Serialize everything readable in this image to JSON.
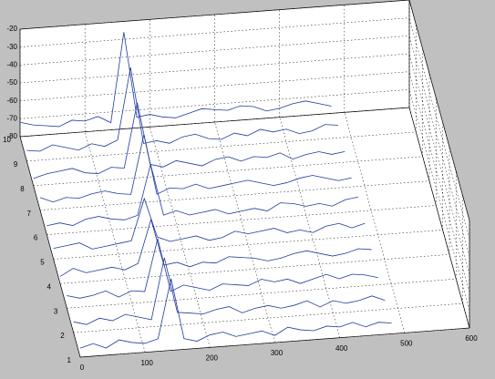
{
  "chart_data": {
    "type": "waterfall3d",
    "x": [
      0,
      20,
      40,
      60,
      80,
      100,
      120,
      140,
      160,
      180,
      200,
      220,
      240,
      260,
      280,
      300,
      320,
      340,
      360,
      380,
      400,
      420,
      440,
      460,
      480
    ],
    "series": [
      {
        "y": 1,
        "color": "#1f3a9e",
        "values": [
          -75,
          -73,
          -76,
          -72,
          -74,
          -75,
          -73,
          -40,
          -74,
          -76,
          -73,
          -72,
          -75,
          -74,
          -73,
          -76,
          -72,
          -74,
          -75,
          -73,
          -74,
          -72,
          -75,
          -73,
          -74
        ]
      },
      {
        "y": 2,
        "color": "#1f3a9e",
        "values": [
          -74,
          -76,
          -73,
          -75,
          -72,
          -74,
          -76,
          -42,
          -73,
          -74,
          -75,
          -73,
          -72,
          -76,
          -74,
          -73,
          -75,
          -74,
          -72,
          -76,
          -73,
          -75,
          -74,
          -72,
          -75
        ]
      },
      {
        "y": 3,
        "color": "#1f3a9e",
        "values": [
          -73,
          -75,
          -74,
          -72,
          -76,
          -73,
          -74,
          -45,
          -75,
          -72,
          -74,
          -76,
          -73,
          -74,
          -75,
          -72,
          -74,
          -73,
          -76,
          -74,
          -72,
          -75,
          -73,
          -74,
          -76
        ]
      },
      {
        "y": 4,
        "color": "#1f3a9e",
        "values": [
          -76,
          -72,
          -75,
          -74,
          -73,
          -75,
          -72,
          -48,
          -74,
          -73,
          -76,
          -74,
          -75,
          -72,
          -73,
          -74,
          -76,
          -75,
          -73,
          -72,
          -74,
          -76,
          -75,
          -73,
          -74
        ]
      },
      {
        "y": 5,
        "color": "#1f3a9e",
        "values": [
          -74,
          -73,
          -72,
          -76,
          -75,
          -74,
          -73,
          -50,
          -72,
          -75,
          -74,
          -73,
          -76,
          -75,
          -72,
          -74,
          -73,
          -72,
          -75,
          -74,
          -76,
          -73,
          -72,
          -75,
          -73
        ]
      },
      {
        "y": 6,
        "color": "#1f3a9e",
        "values": [
          -75,
          -74,
          -76,
          -73,
          -72,
          -74,
          -75,
          -73,
          -45,
          -74,
          -72,
          -75,
          -74,
          -73,
          -76,
          -75,
          -74,
          -76,
          -72,
          -73,
          -75,
          -74,
          -76,
          -73,
          -72
        ]
      },
      {
        "y": 7,
        "color": "#1f3a9e",
        "values": [
          -73,
          -76,
          -74,
          -75,
          -73,
          -72,
          -74,
          -75,
          -42,
          -76,
          -73,
          -74,
          -72,
          -75,
          -74,
          -73,
          -72,
          -74,
          -76,
          -75,
          -73,
          -72,
          -74,
          -76,
          -75
        ]
      },
      {
        "y": 8,
        "color": "#1f3a9e",
        "values": [
          -76,
          -74,
          -73,
          -72,
          -75,
          -76,
          -73,
          -74,
          -38,
          -73,
          -75,
          -72,
          -74,
          -76,
          -73,
          -72,
          -75,
          -73,
          -74,
          -72,
          -76,
          -74,
          -73,
          -75,
          -74
        ]
      },
      {
        "y": 9,
        "color": "#1f3a9e",
        "values": [
          -74,
          -75,
          -72,
          -74,
          -76,
          -73,
          -75,
          -72,
          -32,
          -75,
          -74,
          -76,
          -73,
          -72,
          -75,
          -76,
          -73,
          -75,
          -72,
          -74,
          -73,
          -76,
          -75,
          -72,
          -73
        ]
      },
      {
        "y": 10,
        "color": "#1f3a9e",
        "values": [
          -72,
          -74,
          -75,
          -76,
          -73,
          -74,
          -72,
          -76,
          -26,
          -74,
          -73,
          -75,
          -76,
          -74,
          -72,
          -73,
          -74,
          -72,
          -73,
          -76,
          -75,
          -73,
          -72,
          -74,
          -76
        ]
      }
    ],
    "xlim": [
      0,
      600
    ],
    "xticks": [
      0,
      100,
      200,
      300,
      400,
      500,
      600
    ],
    "ylim": [
      1,
      10
    ],
    "yticks": [
      1,
      2,
      3,
      4,
      5,
      6,
      7,
      8,
      9,
      10
    ],
    "zlim": [
      -80,
      -20
    ],
    "zticks": [
      -20,
      -30,
      -40,
      -50,
      -60,
      -70,
      -80
    ],
    "grid": true
  }
}
